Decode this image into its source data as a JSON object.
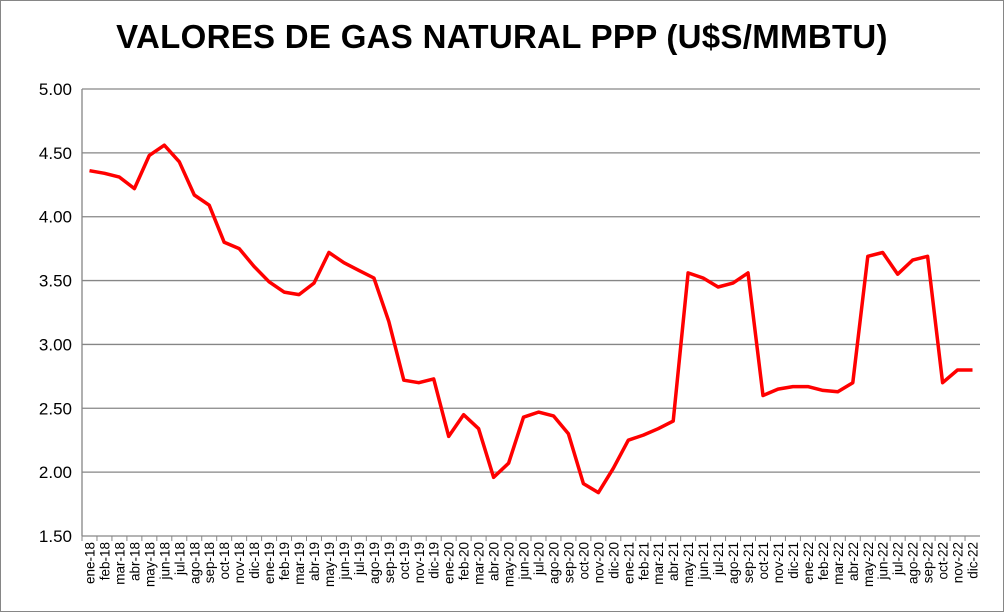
{
  "chart_data": {
    "type": "line",
    "title": "VALORES DE GAS NATURAL PPP (U$S/MMBTU)",
    "xlabel": "",
    "ylabel": "",
    "ylim": [
      1.5,
      5.0
    ],
    "yticks": [
      "1.50",
      "2.00",
      "2.50",
      "3.00",
      "3.50",
      "4.00",
      "4.50",
      "5.00"
    ],
    "grid": true,
    "legend": "none",
    "categories": [
      "ene-18",
      "feb-18",
      "mar-18",
      "abr-18",
      "may-18",
      "jun-18",
      "jul-18",
      "ago-18",
      "sep-18",
      "oct-18",
      "nov-18",
      "dic-18",
      "ene-19",
      "feb-19",
      "mar-19",
      "abr-19",
      "may-19",
      "jun-19",
      "jul-19",
      "ago-19",
      "sep-19",
      "oct-19",
      "nov-19",
      "dic-19",
      "ene-20",
      "feb-20",
      "mar-20",
      "abr-20",
      "may-20",
      "jun-20",
      "jul-20",
      "ago-20",
      "sep-20",
      "oct-20",
      "nov-20",
      "dic-20",
      "ene-21",
      "feb-21",
      "mar-21",
      "abr-21",
      "may-21",
      "jun-21",
      "jul-21",
      "ago-21",
      "sep-21",
      "oct-21",
      "nov-21",
      "dic-21",
      "ene-22",
      "feb-22",
      "mar-22",
      "abr-22",
      "may-22",
      "jun-22",
      "jul-22",
      "ago-22",
      "sep-22",
      "oct-22",
      "nov-22",
      "dic-22"
    ],
    "series": [
      {
        "name": "Gas natural PPP",
        "color": "#ff0000",
        "values": [
          4.36,
          4.34,
          4.31,
          4.22,
          4.48,
          4.56,
          4.43,
          4.17,
          4.09,
          3.8,
          3.75,
          3.61,
          3.49,
          3.41,
          3.39,
          3.48,
          3.72,
          3.64,
          3.58,
          3.52,
          3.18,
          2.72,
          2.7,
          2.73,
          2.28,
          2.45,
          2.34,
          1.96,
          2.07,
          2.43,
          2.47,
          2.44,
          2.3,
          1.91,
          1.84,
          2.03,
          2.25,
          2.29,
          2.34,
          2.4,
          3.56,
          3.52,
          3.45,
          3.48,
          3.56,
          2.6,
          2.65,
          2.67,
          2.67,
          2.64,
          2.63,
          2.7,
          3.69,
          3.72,
          3.55,
          3.66,
          3.69,
          2.7,
          2.8,
          2.8
        ]
      }
    ]
  }
}
